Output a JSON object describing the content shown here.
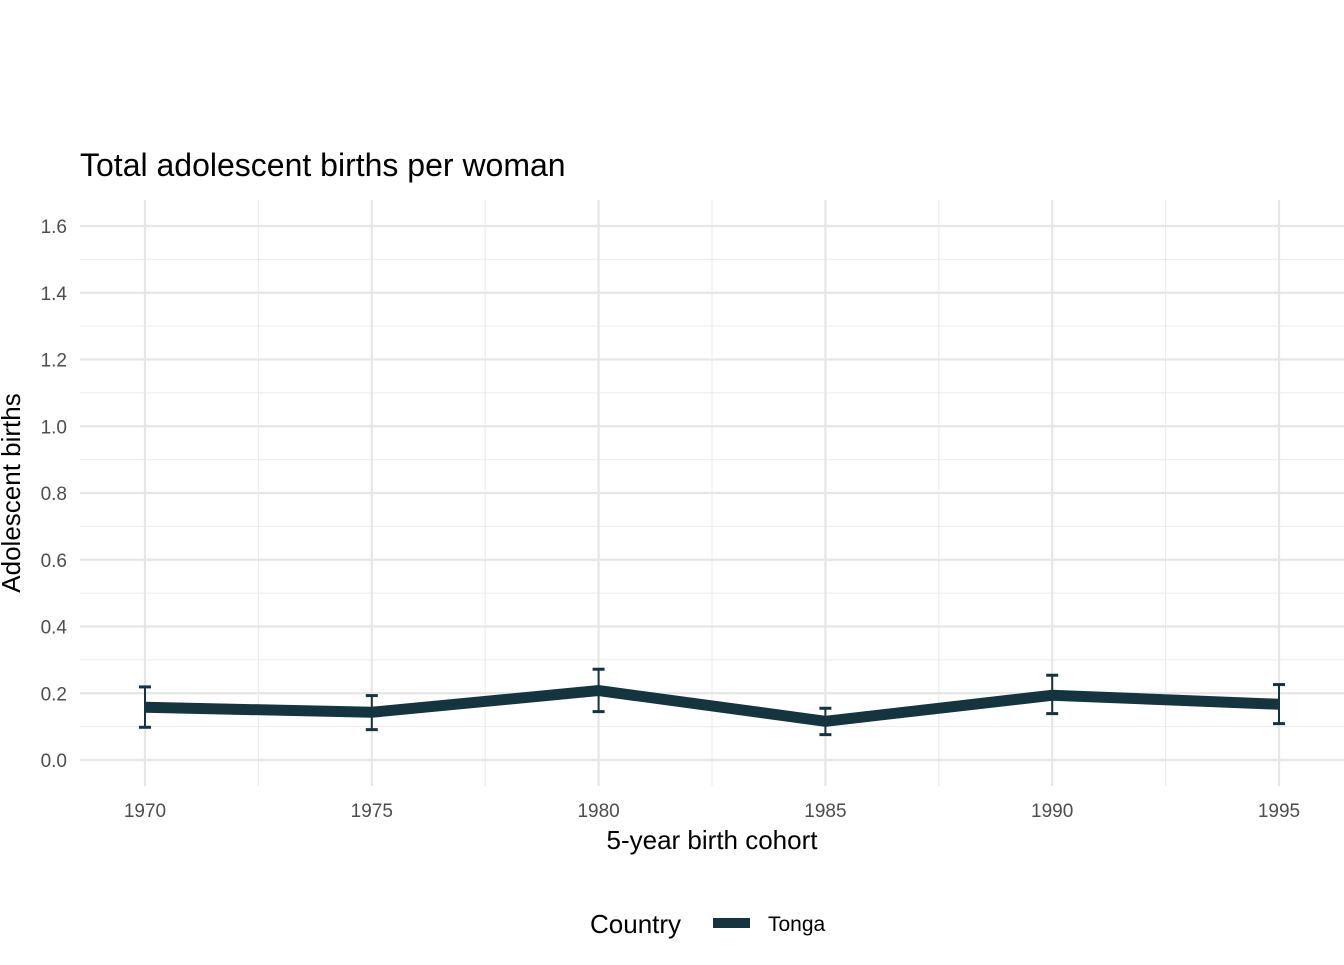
{
  "chart_data": {
    "type": "line",
    "title": "Total adolescent births per woman",
    "xlabel": "5-year birth cohort",
    "ylabel": "Adolescent births",
    "x": [
      1970,
      1975,
      1980,
      1985,
      1990,
      1995
    ],
    "series": [
      {
        "name": "Tonga",
        "color": "#14343f",
        "values": [
          0.158,
          0.143,
          0.208,
          0.116,
          0.194,
          0.167
        ],
        "lower": [
          0.098,
          0.091,
          0.145,
          0.076,
          0.139,
          0.109
        ],
        "upper": [
          0.219,
          0.193,
          0.272,
          0.155,
          0.254,
          0.226
        ]
      }
    ],
    "ylim": [
      -0.08,
      1.68
    ],
    "xlim": [
      1967.1,
      1997.6
    ],
    "yticks": [
      0.0,
      0.2,
      0.4,
      0.6,
      0.8,
      1.0,
      1.2,
      1.4,
      1.6
    ],
    "ytick_labels": [
      "0.0",
      "0.2",
      "0.4",
      "0.6",
      "0.8",
      "1.0",
      "1.2",
      "1.4",
      "1.6"
    ],
    "xticks": [
      1970,
      1975,
      1980,
      1985,
      1990,
      1995
    ],
    "xtick_labels": [
      "1970",
      "1975",
      "1980",
      "1985",
      "1990",
      "1995"
    ],
    "grid": true,
    "legend": {
      "title": "Country",
      "position": "bottom",
      "entries": [
        "Tonga"
      ]
    }
  }
}
